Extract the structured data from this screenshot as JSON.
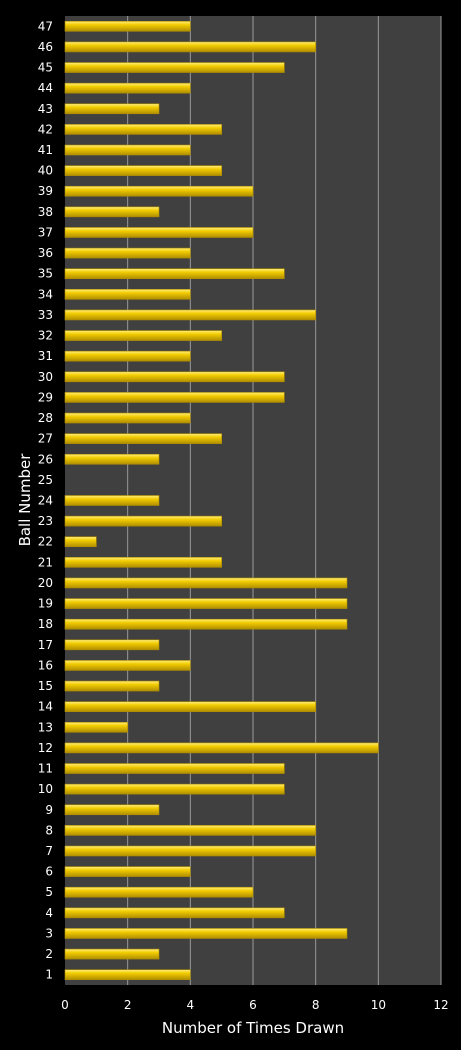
{
  "chart_data": {
    "type": "bar",
    "orientation": "horizontal",
    "title": "",
    "xlabel": "Number of Times Drawn",
    "ylabel": "Ball Number",
    "xlim": [
      0,
      12
    ],
    "x_ticks": [
      0,
      2,
      4,
      6,
      8,
      10,
      12
    ],
    "grid": true,
    "legend": "none",
    "colors": {
      "background": "#000000",
      "plot_area": "#404040",
      "gridline": "#9a9a9a",
      "bar_fill": "#f2cc00",
      "bar_highlight": "#ffef80",
      "bar_shadow": "#b08e00",
      "text": "#ffffff"
    },
    "categories": [
      "1",
      "2",
      "3",
      "4",
      "5",
      "6",
      "7",
      "8",
      "9",
      "10",
      "11",
      "12",
      "13",
      "14",
      "15",
      "16",
      "17",
      "18",
      "19",
      "20",
      "21",
      "22",
      "23",
      "24",
      "25",
      "26",
      "27",
      "28",
      "29",
      "30",
      "31",
      "32",
      "33",
      "34",
      "35",
      "36",
      "37",
      "38",
      "39",
      "40",
      "41",
      "42",
      "43",
      "44",
      "45",
      "46",
      "47"
    ],
    "values": [
      4,
      3,
      9,
      7,
      6,
      4,
      8,
      8,
      3,
      7,
      7,
      10,
      2,
      8,
      3,
      4,
      3,
      9,
      9,
      9,
      5,
      1,
      5,
      3,
      0,
      3,
      5,
      4,
      7,
      7,
      4,
      5,
      8,
      4,
      7,
      4,
      6,
      3,
      6,
      5,
      4,
      5,
      3,
      4,
      7,
      8,
      4
    ]
  }
}
